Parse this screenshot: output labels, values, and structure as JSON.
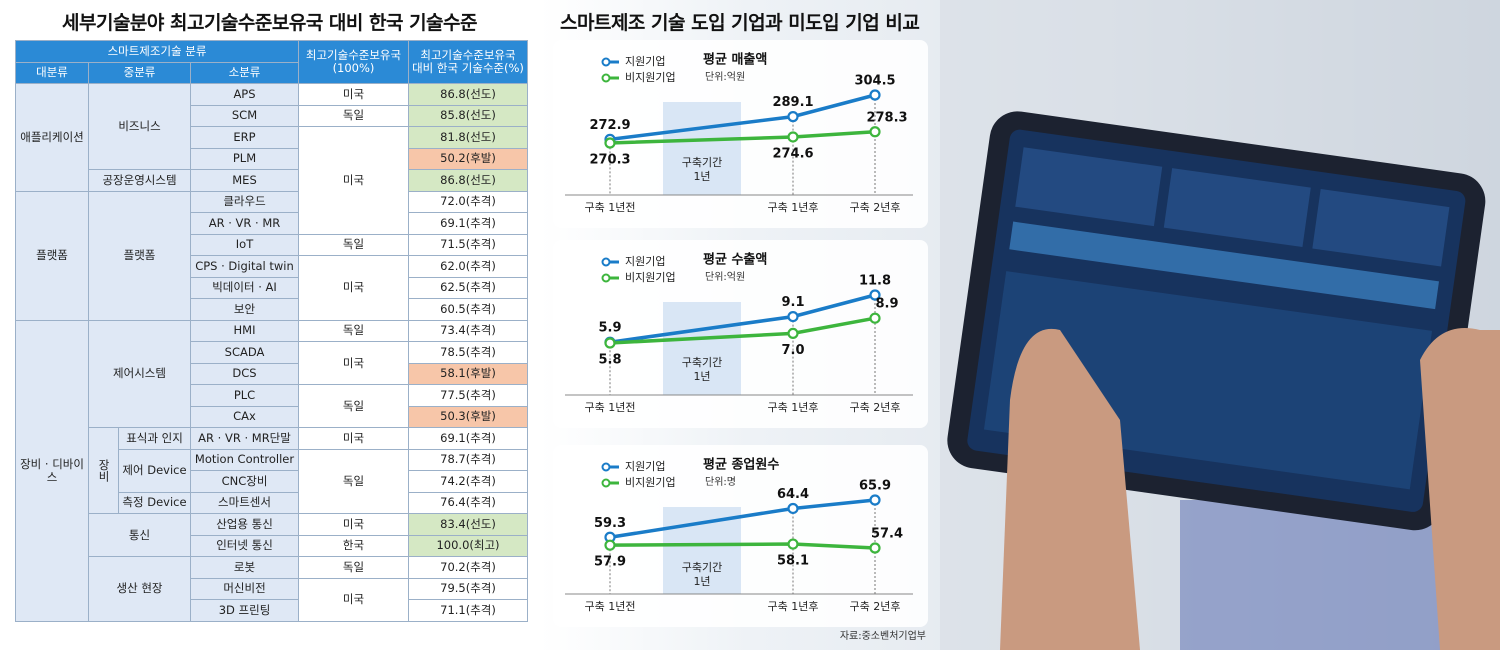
{
  "left_title": "세부기술분야 최고기술수준보유국 대비 한국 기술수준",
  "table": {
    "header": [
      "스마트제조기술 분류",
      "최고기술수준보유국\n(100%)",
      "최고기술수준보유국\n대비 한국 기술수준(%)"
    ],
    "subheader": [
      "대분류",
      "중분류",
      "소분류"
    ],
    "large": [
      "애플리케이션",
      "플랫폼",
      "장비 · 디바이스"
    ],
    "mid": [
      "비즈니스",
      "공장운영시스템",
      "플랫폼",
      "제어시스템",
      "장비",
      "통신",
      "생산 현장"
    ],
    "sub": [
      "표식과 인지",
      "제어 Device",
      "측정 Device"
    ],
    "items": [
      "APS",
      "SCM",
      "ERP",
      "PLM",
      "MES",
      "클라우드",
      "AR · VR · MR",
      "IoT",
      "CPS · Digital twin",
      "빅데이터 · AI",
      "보안",
      "HMI",
      "SCADA",
      "DCS",
      "PLC",
      "CAx",
      "AR · VR · MR단말",
      "Motion Controller",
      "CNC장비",
      "스마트센서",
      "산업용 통신",
      "인터넷 통신",
      "로봇",
      "머신비전",
      "3D 프린팅"
    ],
    "countries": [
      "미국",
      "독일",
      "미국",
      "독일",
      "미국",
      "독일",
      "미국",
      "독일",
      "미국",
      "독일",
      "미국",
      "한국",
      "독일",
      "미국"
    ],
    "levels": [
      "86.8(선도)",
      "85.8(선도)",
      "81.8(선도)",
      "50.2(후발)",
      "86.8(선도)",
      "72.0(추격)",
      "69.1(추격)",
      "71.5(추격)",
      "62.0(추격)",
      "62.5(추격)",
      "60.5(추격)",
      "73.4(추격)",
      "78.5(추격)",
      "58.1(후발)",
      "77.5(추격)",
      "50.3(후발)",
      "69.1(추격)",
      "78.7(추격)",
      "74.2(추격)",
      "76.4(추격)",
      "83.4(선도)",
      "100.0(최고)",
      "70.2(추격)",
      "79.5(추격)",
      "71.1(추격)"
    ],
    "level_colors": [
      "#d5e8c4",
      "#d5e8c4",
      "#d5e8c4",
      "#f7c6a9",
      "#d5e8c4",
      "#ffffff",
      "#ffffff",
      "#ffffff",
      "#ffffff",
      "#ffffff",
      "#ffffff",
      "#ffffff",
      "#ffffff",
      "#f7c6a9",
      "#ffffff",
      "#f7c6a9",
      "#ffffff",
      "#ffffff",
      "#ffffff",
      "#ffffff",
      "#d5e8c4",
      "#d5e8c4",
      "#ffffff",
      "#ffffff",
      "#ffffff"
    ]
  },
  "right_title": "스마트제조 기술 도입 기업과 미도입 기업 비교",
  "chart_data": [
    {
      "type": "line",
      "title": "평균 매출액",
      "subtitle": "단위:억원",
      "categories": [
        "구축 1년전",
        "구축 1년후",
        "구축 2년후"
      ],
      "annotation": "구축기간\n1년",
      "series": [
        {
          "name": "지원기업",
          "color": "#1a7cc8",
          "values": [
            272.9,
            289.1,
            304.5
          ]
        },
        {
          "name": "비지원기업",
          "color": "#3db53d",
          "values": [
            270.3,
            274.6,
            278.3
          ]
        }
      ]
    },
    {
      "type": "line",
      "title": "평균 수출액",
      "subtitle": "단위:억원",
      "categories": [
        "구축 1년전",
        "구축 1년후",
        "구축 2년후"
      ],
      "annotation": "구축기간\n1년",
      "series": [
        {
          "name": "지원기업",
          "color": "#1a7cc8",
          "values": [
            5.9,
            9.1,
            11.8
          ]
        },
        {
          "name": "비지원기업",
          "color": "#3db53d",
          "values": [
            5.8,
            7,
            8.9
          ],
          "value_labels": [
            "5.8",
            "7.0",
            "8.9"
          ]
        }
      ]
    },
    {
      "type": "line",
      "title": "평균 종업원수",
      "subtitle": "단위:명",
      "categories": [
        "구축 1년전",
        "구축 1년후",
        "구축 2년후"
      ],
      "annotation": "구축기간\n1년",
      "series": [
        {
          "name": "지원기업",
          "color": "#1a7cc8",
          "values": [
            59.3,
            64.4,
            65.9
          ]
        },
        {
          "name": "비지원기업",
          "color": "#3db53d",
          "values": [
            57.9,
            58.1,
            57.4
          ]
        }
      ]
    }
  ],
  "source": "자료:중소벤처기업부"
}
